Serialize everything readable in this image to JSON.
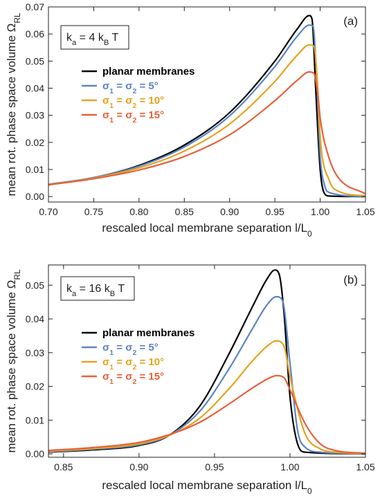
{
  "chart_data": [
    {
      "type": "line",
      "panel_tag": "(a)",
      "xlabel": "rescaled local membrane separation l/L₀",
      "ylabel": "mean rot. phase space volume Ω_RL",
      "xlim": [
        0.7,
        1.05
      ],
      "ylim": [
        -0.002,
        0.07
      ],
      "x_ticks": [
        "0.70",
        "0.75",
        "0.80",
        "0.85",
        "0.90",
        "0.95",
        "1.00",
        "1.05"
      ],
      "y_ticks": [
        "0.00",
        "0.01",
        "0.02",
        "0.03",
        "0.04",
        "0.05",
        "0.06",
        "0.07"
      ],
      "annotation": "kₐ = 4 k_B T",
      "legend_position": "left-center",
      "grid": false,
      "series": [
        {
          "name": "planar membranes",
          "color": "#000000",
          "x": [
            0.7,
            0.75,
            0.8,
            0.85,
            0.9,
            0.95,
            0.975,
            0.988,
            0.991,
            0.995,
            1.0,
            1.005,
            1.01,
            1.05
          ],
          "y": [
            0.0045,
            0.007,
            0.0115,
            0.019,
            0.031,
            0.05,
            0.062,
            0.0668,
            0.0655,
            0.04,
            0.01,
            0.001,
            0.0002,
            0.0
          ]
        },
        {
          "name": "σ₁ = σ₂ = 5°",
          "color": "#5b84c4",
          "x": [
            0.7,
            0.75,
            0.8,
            0.85,
            0.9,
            0.95,
            0.975,
            0.988,
            0.992,
            0.996,
            1.0,
            1.005,
            1.01,
            1.05
          ],
          "y": [
            0.0045,
            0.007,
            0.0112,
            0.0183,
            0.0298,
            0.048,
            0.0593,
            0.0633,
            0.063,
            0.045,
            0.015,
            0.004,
            0.0015,
            0.0
          ]
        },
        {
          "name": "σ₁ = σ₂ = 10°",
          "color": "#e6a21d",
          "x": [
            0.7,
            0.75,
            0.8,
            0.85,
            0.9,
            0.95,
            0.975,
            0.988,
            0.993,
            0.997,
            1.0,
            1.01,
            1.02,
            1.05
          ],
          "y": [
            0.0044,
            0.0068,
            0.0106,
            0.0168,
            0.0268,
            0.0425,
            0.0523,
            0.056,
            0.0555,
            0.042,
            0.022,
            0.006,
            0.002,
            0.0002
          ]
        },
        {
          "name": "σ₁ = σ₂ = 15°",
          "color": "#e8603a",
          "x": [
            0.7,
            0.75,
            0.8,
            0.85,
            0.9,
            0.95,
            0.975,
            0.988,
            0.993,
            0.998,
            1.0,
            1.01,
            1.02,
            1.05
          ],
          "y": [
            0.0043,
            0.0066,
            0.0098,
            0.0148,
            0.0228,
            0.0354,
            0.043,
            0.046,
            0.0455,
            0.036,
            0.029,
            0.014,
            0.007,
            0.001
          ]
        }
      ]
    },
    {
      "type": "line",
      "panel_tag": "(b)",
      "xlabel": "rescaled local membrane separation l/L₀",
      "ylabel": "mean rot. phase space volume Ω_RL",
      "xlim": [
        0.84,
        1.05
      ],
      "ylim": [
        -0.001,
        0.056
      ],
      "x_ticks": [
        "0.85",
        "0.90",
        "0.95",
        "1.00",
        "1.05"
      ],
      "y_ticks": [
        "0.00",
        "0.01",
        "0.02",
        "0.03",
        "0.04",
        "0.05"
      ],
      "annotation": "kₐ = 16 k_B T",
      "legend_position": "left-center",
      "grid": false,
      "series": [
        {
          "name": "planar membranes",
          "color": "#000000",
          "x": [
            0.84,
            0.87,
            0.9,
            0.92,
            0.94,
            0.96,
            0.975,
            0.985,
            0.99,
            0.993,
            0.996,
            1.0,
            1.005,
            1.01,
            1.05
          ],
          "y": [
            0.0005,
            0.0012,
            0.0025,
            0.0055,
            0.014,
            0.03,
            0.0435,
            0.052,
            0.0545,
            0.053,
            0.042,
            0.017,
            0.003,
            0.0005,
            0.0
          ]
        },
        {
          "name": "σ₁ = σ₂ = 5°",
          "color": "#5b84c4",
          "x": [
            0.84,
            0.87,
            0.9,
            0.92,
            0.94,
            0.96,
            0.975,
            0.985,
            0.991,
            0.995,
            1.0,
            1.005,
            1.01,
            1.02,
            1.05
          ],
          "y": [
            0.0006,
            0.0014,
            0.0027,
            0.0055,
            0.0125,
            0.0255,
            0.037,
            0.0443,
            0.0466,
            0.0455,
            0.027,
            0.007,
            0.002,
            0.0005,
            0.0
          ]
        },
        {
          "name": "σ₁ = σ₂ = 10°",
          "color": "#e6a21d",
          "x": [
            0.84,
            0.87,
            0.9,
            0.92,
            0.94,
            0.96,
            0.975,
            0.985,
            0.991,
            0.996,
            1.0,
            1.01,
            1.02,
            1.03,
            1.05
          ],
          "y": [
            0.0008,
            0.0016,
            0.003,
            0.0055,
            0.0105,
            0.0195,
            0.0275,
            0.032,
            0.0335,
            0.032,
            0.023,
            0.006,
            0.0015,
            0.0005,
            0.0001
          ]
        },
        {
          "name": "σ₁ = σ₂ = 15°",
          "color": "#e8603a",
          "x": [
            0.84,
            0.87,
            0.9,
            0.92,
            0.94,
            0.96,
            0.975,
            0.985,
            0.991,
            0.996,
            1.0,
            1.01,
            1.02,
            1.03,
            1.05
          ],
          "y": [
            0.001,
            0.0019,
            0.0034,
            0.0057,
            0.0093,
            0.0149,
            0.0195,
            0.0222,
            0.0232,
            0.0226,
            0.019,
            0.009,
            0.003,
            0.001,
            0.0002
          ]
        }
      ]
    }
  ]
}
